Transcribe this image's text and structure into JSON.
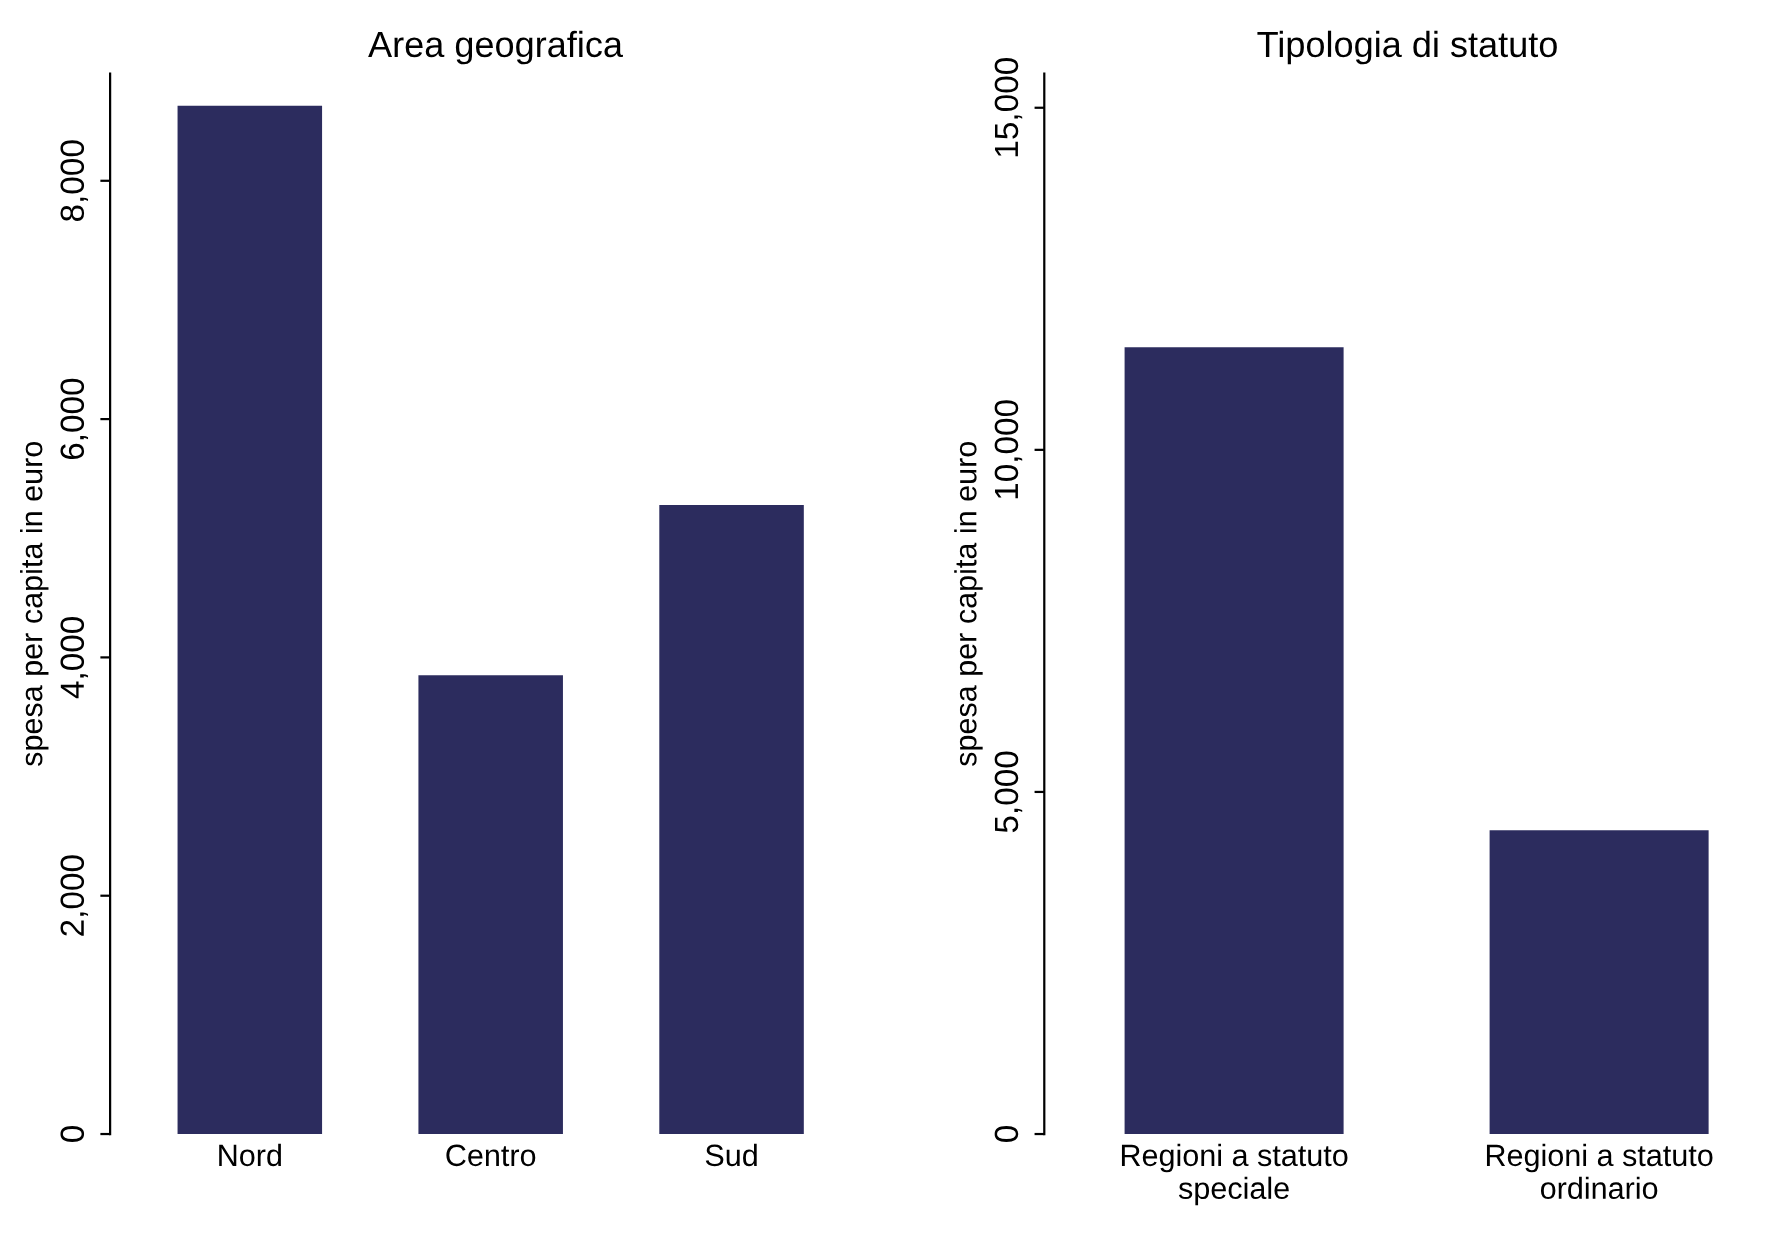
{
  "chart_data": [
    {
      "type": "bar",
      "title": "Area geografica",
      "ylabel": "spesa per capita in euro",
      "categories": [
        "Nord",
        "Centro",
        "Sud"
      ],
      "values": [
        8630,
        3850,
        5280
      ],
      "color": "#2c2c5e",
      "ylim": [
        0,
        8900
      ],
      "yticks": [
        {
          "value": 0,
          "label": "0"
        },
        {
          "value": 2000,
          "label": "2,000"
        },
        {
          "value": 4000,
          "label": "4,000"
        },
        {
          "value": 6000,
          "label": "6,000"
        },
        {
          "value": 8000,
          "label": "8,000"
        }
      ],
      "grid": false,
      "legend": false
    },
    {
      "type": "bar",
      "title": "Tipologia di statuto",
      "ylabel": "spesa per capita in euro",
      "categories": [
        "Regioni a statuto\nspeciale",
        "Regioni a statuto\nordinario"
      ],
      "values": [
        11500,
        4440
      ],
      "color": "#2c2c5e",
      "ylim": [
        0,
        15500
      ],
      "yticks": [
        {
          "value": 0,
          "label": "0"
        },
        {
          "value": 5000,
          "label": "5,000"
        },
        {
          "value": 10000,
          "label": "10,000"
        },
        {
          "value": 15000,
          "label": "15,000"
        }
      ],
      "grid": false,
      "legend": false
    }
  ]
}
